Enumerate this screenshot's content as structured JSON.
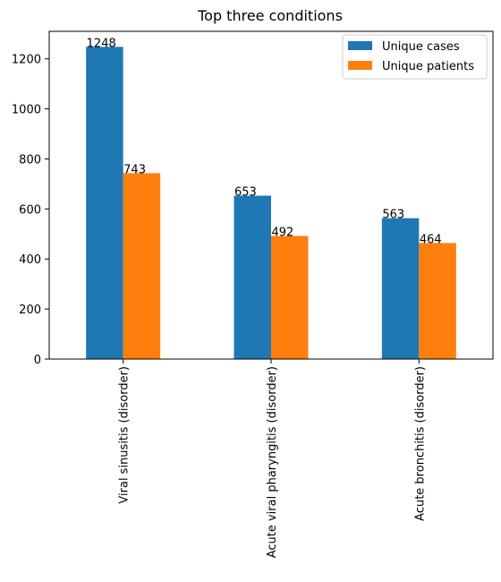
{
  "chart_data": {
    "type": "bar",
    "title": "Top three conditions",
    "categories": [
      "Viral sinusitis (disorder)",
      "Acute viral pharyngitis (disorder)",
      "Acute bronchitis (disorder)"
    ],
    "series": [
      {
        "name": "Unique cases",
        "values": [
          1248,
          653,
          563
        ],
        "color": "#1f77b4"
      },
      {
        "name": "Unique patients",
        "values": [
          743,
          492,
          464
        ],
        "color": "#ff7f0e"
      }
    ],
    "ylim": [
      0,
      1310
    ],
    "yticks": [
      0,
      200,
      400,
      600,
      800,
      1000,
      1200
    ],
    "legend_position": "top-right",
    "grid": false
  }
}
